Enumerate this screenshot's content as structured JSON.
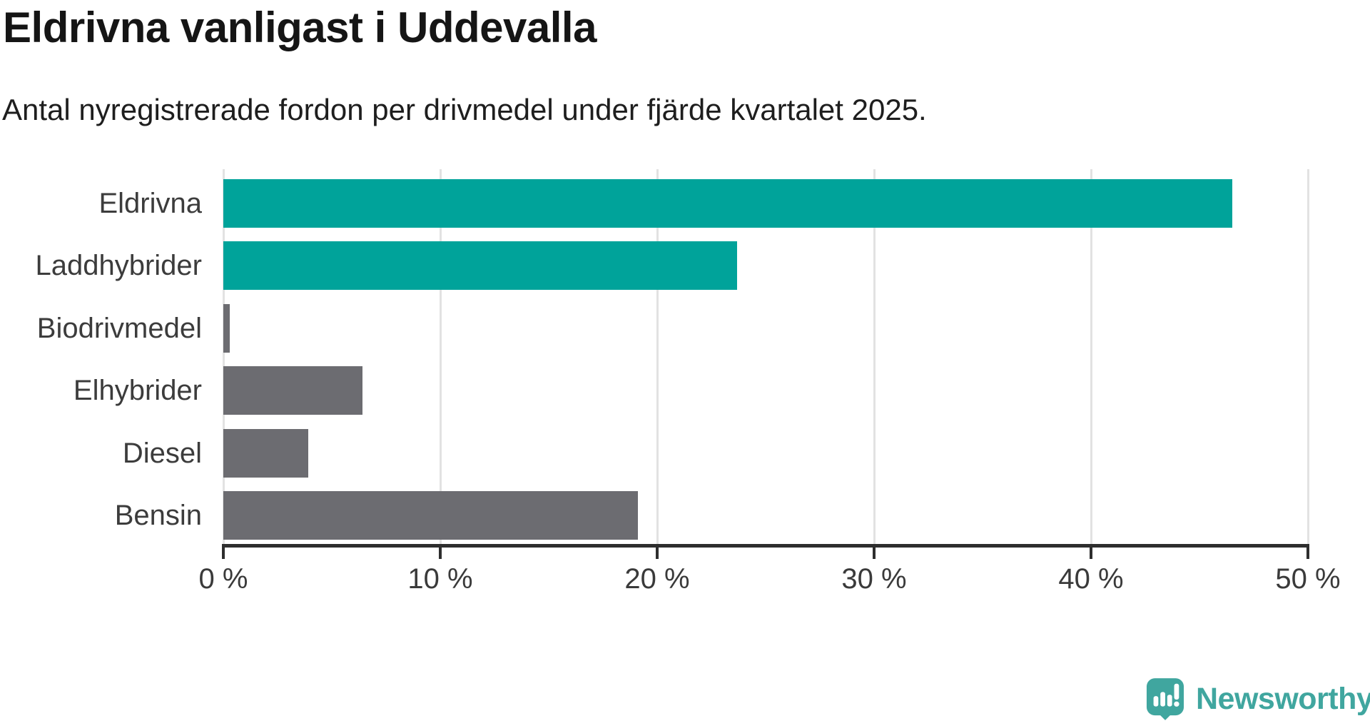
{
  "header": {
    "title": "Eldrivna vanligast i Uddevalla",
    "subtitle": "Antal nyregistrerade fordon per drivmedel under fjärde kvartalet 2025."
  },
  "chart_data": {
    "type": "bar",
    "orientation": "horizontal",
    "title": "Eldrivna vanligast i Uddevalla",
    "subtitle": "Antal nyregistrerade fordon per drivmedel under fjärde kvartalet 2025.",
    "categories": [
      "Eldrivna",
      "Laddhybrider",
      "Biodrivmedel",
      "Elhybrider",
      "Diesel",
      "Bensin"
    ],
    "values": [
      46.5,
      23.7,
      0.3,
      6.4,
      3.9,
      19.1
    ],
    "unit": "%",
    "bar_colors": [
      "#00A39A",
      "#00A39A",
      "#6C6C71",
      "#6C6C71",
      "#6C6C71",
      "#6C6C71"
    ],
    "xlim": [
      0,
      50
    ],
    "x_ticks": [
      0,
      10,
      20,
      30,
      40,
      50
    ],
    "x_tick_labels": [
      "0 %",
      "10 %",
      "20 %",
      "30 %",
      "40 %",
      "50 %"
    ],
    "grid": true,
    "legend": false,
    "gridlines_vertical_only": true
  },
  "colors": {
    "background": "#FFFFFF",
    "accent_teal": "#00A39A",
    "neutral_gray": "#6C6C71",
    "grid_line": "#E2E2E2",
    "axis_line": "#2E2E2E",
    "tick_text": "#3A3A3A",
    "label_text": "#3C3C3C",
    "title_text": "#151515",
    "subtitle_text": "#1E1E1E",
    "logo_teal": "#40A69F"
  },
  "footer": {
    "brand": "Newsworthy"
  }
}
